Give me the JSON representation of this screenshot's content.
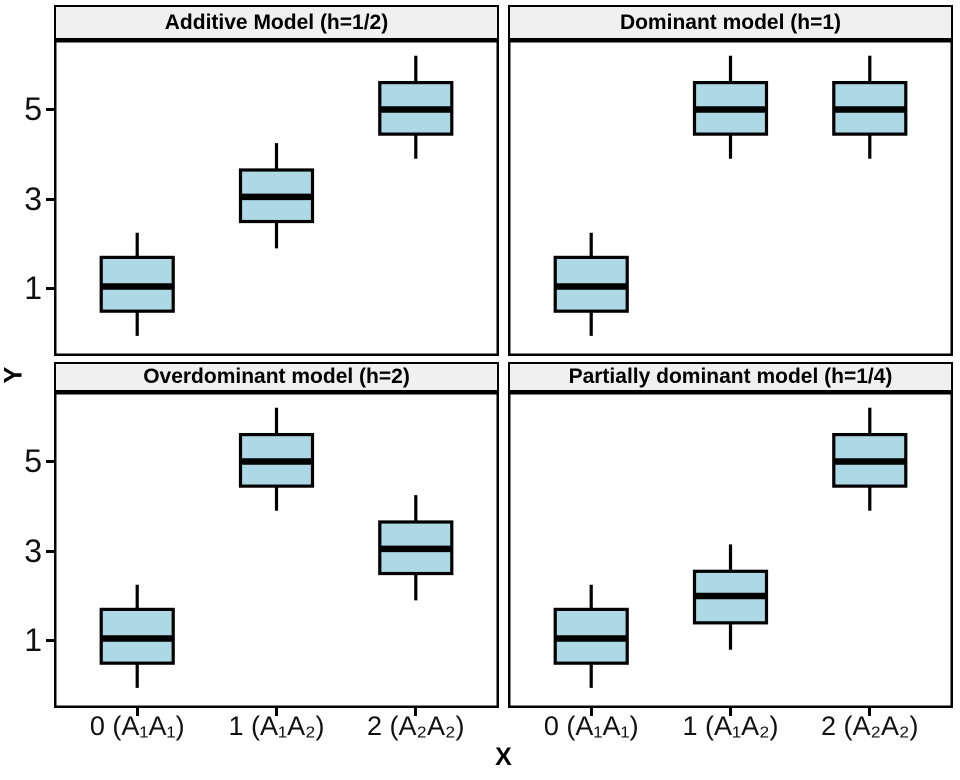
{
  "chart_data": {
    "type": "boxplot",
    "layout": "facet-grid-2x2",
    "xlabel": "X",
    "ylabel": "Y",
    "x_categories": [
      "0 (A₁A₁)",
      "1 (A₁A₂)",
      "2 (A₂A₂)"
    ],
    "y_ticks": [
      1,
      3,
      5
    ],
    "ylim": [
      -0.5,
      6.55
    ],
    "grid": "off",
    "colors": {
      "box_fill": "#ADD8E6",
      "box_stroke": "#000000",
      "strip_bg": "#F0F0F0",
      "panel_bg": "#FFFFFF",
      "text": "#000000"
    },
    "panels": [
      {
        "title": "Additive Model (h=1/2)",
        "row": 0,
        "col": 0,
        "boxes": [
          {
            "category": "0 (A₁A₁)",
            "lo": -0.05,
            "q1": 0.5,
            "med": 1.05,
            "q3": 1.7,
            "hi": 2.25
          },
          {
            "category": "1 (A₁A₂)",
            "lo": 1.9,
            "q1": 2.5,
            "med": 3.05,
            "q3": 3.65,
            "hi": 4.25
          },
          {
            "category": "2 (A₂A₂)",
            "lo": 3.9,
            "q1": 4.45,
            "med": 5.0,
            "q3": 5.6,
            "hi": 6.2
          }
        ]
      },
      {
        "title": "Dominant model (h=1)",
        "row": 0,
        "col": 1,
        "boxes": [
          {
            "category": "0 (A₁A₁)",
            "lo": -0.05,
            "q1": 0.5,
            "med": 1.05,
            "q3": 1.7,
            "hi": 2.25
          },
          {
            "category": "1 (A₁A₂)",
            "lo": 3.9,
            "q1": 4.45,
            "med": 5.0,
            "q3": 5.6,
            "hi": 6.2
          },
          {
            "category": "2 (A₂A₂)",
            "lo": 3.9,
            "q1": 4.45,
            "med": 5.0,
            "q3": 5.6,
            "hi": 6.2
          }
        ]
      },
      {
        "title": "Overdominant model (h=2)",
        "row": 1,
        "col": 0,
        "boxes": [
          {
            "category": "0 (A₁A₁)",
            "lo": -0.05,
            "q1": 0.5,
            "med": 1.05,
            "q3": 1.7,
            "hi": 2.25
          },
          {
            "category": "1 (A₁A₂)",
            "lo": 3.9,
            "q1": 4.45,
            "med": 5.0,
            "q3": 5.6,
            "hi": 6.2
          },
          {
            "category": "2 (A₂A₂)",
            "lo": 1.9,
            "q1": 2.5,
            "med": 3.05,
            "q3": 3.65,
            "hi": 4.25
          }
        ]
      },
      {
        "title": "Partially dominant model (h=1/4)",
        "row": 1,
        "col": 1,
        "boxes": [
          {
            "category": "0 (A₁A₁)",
            "lo": -0.05,
            "q1": 0.5,
            "med": 1.05,
            "q3": 1.7,
            "hi": 2.25
          },
          {
            "category": "1 (A₁A₂)",
            "lo": 0.8,
            "q1": 1.4,
            "med": 2.0,
            "q3": 2.55,
            "hi": 3.15
          },
          {
            "category": "2 (A₂A₂)",
            "lo": 3.9,
            "q1": 4.45,
            "med": 5.0,
            "q3": 5.6,
            "hi": 6.2
          }
        ]
      }
    ]
  }
}
